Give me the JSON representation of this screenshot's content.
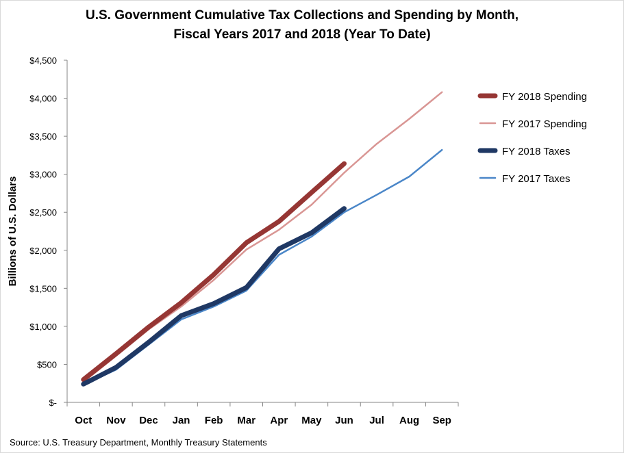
{
  "title_line1": "U.S. Government Cumulative Tax Collections and Spending by Month,",
  "title_line2": "Fiscal Years 2017 and 2018 (Year To Date)",
  "source": "Source: U.S. Treasury Department, Monthly Treasury Statements",
  "chart_data": {
    "type": "line",
    "title": "U.S. Government Cumulative Tax Collections and Spending by Month, Fiscal Years 2017 and 2018 (Year To Date)",
    "xlabel": "",
    "ylabel": "Billions of U.S. Dollars",
    "categories": [
      "Oct",
      "Nov",
      "Dec",
      "Jan",
      "Feb",
      "Mar",
      "Apr",
      "May",
      "Jun",
      "Jul",
      "Aug",
      "Sep"
    ],
    "ylim": [
      0,
      4500
    ],
    "ytick_values": [
      0,
      500,
      1000,
      1500,
      2000,
      2500,
      3000,
      3500,
      4000,
      4500
    ],
    "ytick_labels": [
      "$-",
      "$500",
      "$1,000",
      "$1,500",
      "$2,000",
      "$2,500",
      "$3,000",
      "$3,500",
      "$4,000",
      "$4,500"
    ],
    "grid": false,
    "legend_position": "right",
    "series": [
      {
        "name": "FY 2018 Spending",
        "color": "#963634",
        "width": "thick",
        "values": [
          300,
          640,
          990,
          1310,
          1680,
          2100,
          2380,
          2760,
          3140,
          null,
          null,
          null
        ]
      },
      {
        "name": "FY 2017 Spending",
        "color": "#d99694",
        "width": "thin",
        "values": [
          270,
          610,
          960,
          1260,
          1610,
          2010,
          2270,
          2600,
          3020,
          3400,
          3730,
          4080
        ]
      },
      {
        "name": "FY 2018 Taxes",
        "color": "#1f3864",
        "width": "thick",
        "values": [
          240,
          460,
          790,
          1140,
          1300,
          1510,
          2020,
          2230,
          2550,
          null,
          null,
          null
        ]
      },
      {
        "name": "FY 2017 Taxes",
        "color": "#4a86c8",
        "width": "thin",
        "values": [
          230,
          430,
          760,
          1090,
          1260,
          1470,
          1940,
          2180,
          2500,
          2730,
          2970,
          3320
        ]
      }
    ]
  }
}
